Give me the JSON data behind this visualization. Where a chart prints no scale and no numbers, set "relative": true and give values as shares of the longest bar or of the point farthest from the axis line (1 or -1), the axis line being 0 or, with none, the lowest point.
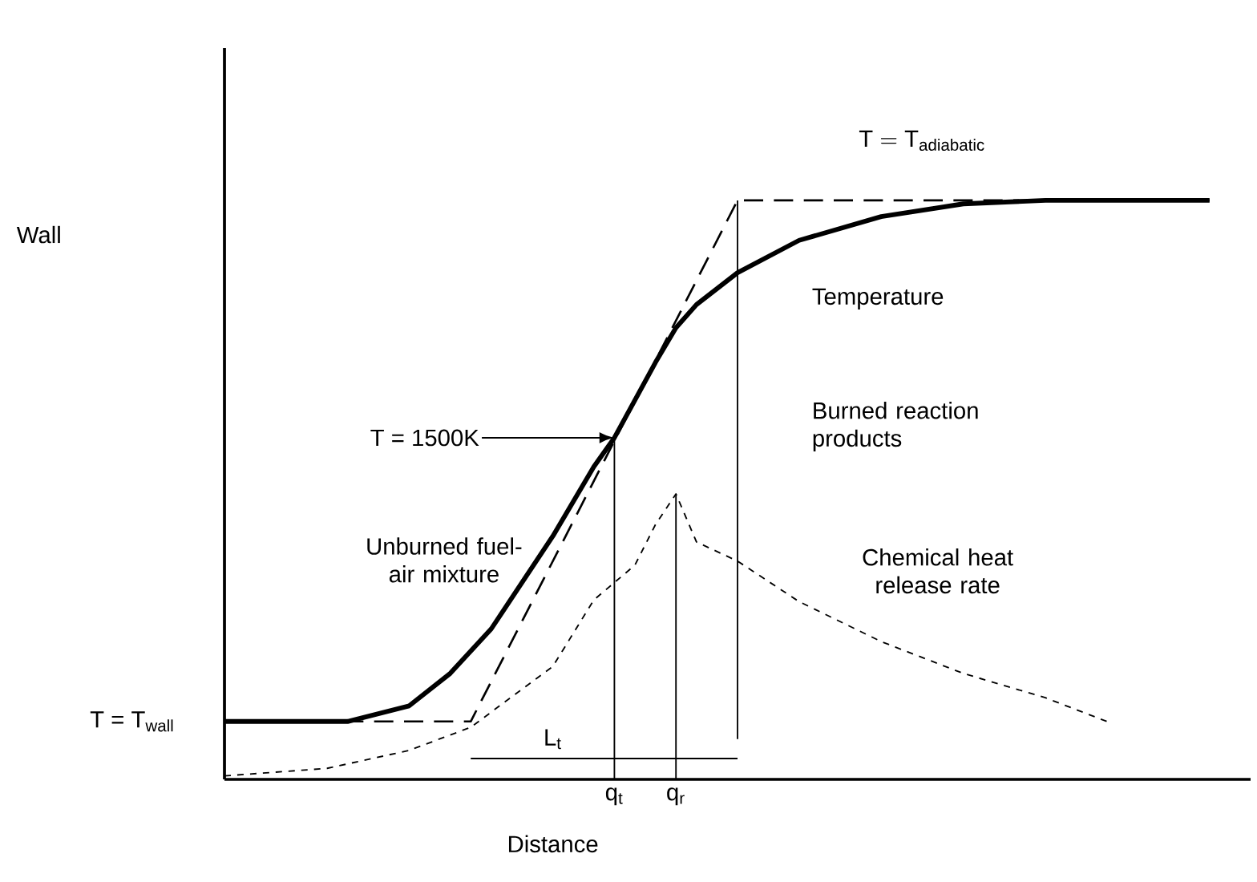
{
  "chart_data": {
    "type": "line",
    "relative": true,
    "xlabel": "Distance",
    "categories": [
      null,
      null,
      null,
      null,
      null,
      null,
      null,
      null,
      null,
      null,
      null,
      null,
      null,
      null,
      null,
      null,
      null,
      null,
      null,
      "q$_{t}$",
      null,
      null,
      "q$_{r}$",
      null,
      null,
      null,
      null,
      null,
      null,
      null,
      null,
      null,
      null,
      null,
      null,
      null,
      null,
      null,
      null,
      null,
      null,
      null,
      null,
      null,
      null,
      null,
      null,
      null,
      null,
      null,
      null
    ],
    "series": [
      {
        "color": "#000000",
        "line_style": "solid",
        "values": [
          0.1,
          null,
          null,
          null,
          null,
          null,
          0.1,
          null,
          null,
          0.127,
          null,
          0.183,
          null,
          0.26,
          null,
          null,
          0.42,
          null,
          0.54,
          0.59,
          null,
          0.72,
          0.78,
          0.82,
          null,
          0.875,
          null,
          null,
          0.931,
          null,
          null,
          null,
          0.972,
          null,
          null,
          null,
          0.994,
          null,
          null,
          null,
          1.0,
          null,
          null,
          null,
          null,
          null,
          null,
          null,
          1.0,
          null,
          null
        ]
      },
      {
        "color": "#000000",
        "line_style": "dashed",
        "values": [
          0.1,
          null,
          null,
          null,
          null,
          null,
          null,
          null,
          null,
          null,
          null,
          null,
          0.1,
          null,
          null,
          null,
          null,
          null,
          null,
          null,
          null,
          null,
          null,
          null,
          null,
          1.0,
          null,
          null,
          null,
          null,
          null,
          null,
          null,
          null,
          null,
          null,
          null,
          null,
          null,
          null,
          null,
          null,
          null,
          null,
          null,
          null,
          null,
          null,
          1.0,
          null,
          null
        ]
      },
      {
        "color": "#000000",
        "line_style": "dotted",
        "values": [
          0.006,
          null,
          null,
          null,
          null,
          0.019,
          null,
          null,
          null,
          0.05,
          null,
          null,
          0.09,
          null,
          null,
          null,
          0.195,
          null,
          0.31,
          0.34,
          0.37,
          0.44,
          0.493,
          0.41,
          null,
          0.377,
          null,
          null,
          0.307,
          null,
          null,
          null,
          0.238,
          null,
          null,
          null,
          0.183,
          null,
          null,
          null,
          0.141,
          null,
          null,
          0.1,
          null,
          null,
          null,
          null,
          null,
          null,
          null
        ]
      },
      {
        "color": "#000000",
        "line_style": "solid",
        "values": [
          null,
          null,
          null,
          null,
          null,
          null,
          null,
          null,
          null,
          null,
          null,
          null,
          0.036,
          null,
          null,
          null,
          null,
          null,
          null,
          null,
          null,
          null,
          null,
          null,
          null,
          0.036,
          null,
          null,
          null,
          null,
          null,
          null,
          null,
          null,
          null,
          null,
          null,
          null,
          null,
          null,
          null,
          null,
          null,
          null,
          null,
          null,
          null,
          null,
          null,
          null,
          null
        ]
      }
    ],
    "ref_lines": [
      {
        "axis": "x",
        "value": "q$_{t}$"
      },
      {
        "axis": "x",
        "value": "q$_{r}$"
      }
    ],
    "annotations": [
      "Wall",
      {
        "text": "\\mathrm{T=T}_{\\mathrm{adiabatic}}",
        "y": 1.0
      },
      "Temperature",
      "T = 1500K",
      "Burned reaction products",
      "Unburned fuel-air mixture",
      "Chemical heat release rate",
      "L$_{t}$",
      "T = T$_{wall}$"
    ]
  }
}
